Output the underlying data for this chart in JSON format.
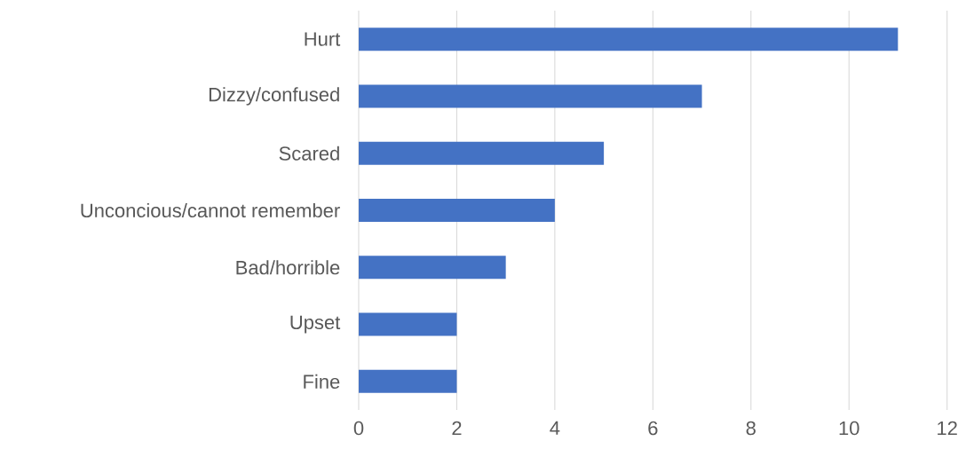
{
  "chart_data": {
    "type": "bar",
    "orientation": "horizontal",
    "categories": [
      "Hurt",
      "Dizzy/confused",
      "Scared",
      "Unconcious/cannot remember",
      "Bad/horrible",
      "Upset",
      "Fine"
    ],
    "values": [
      11,
      7,
      5,
      4,
      3,
      2,
      2
    ],
    "color": "#4472c4",
    "xlim": [
      0,
      12
    ],
    "xticks": [
      0,
      2,
      4,
      6,
      8,
      10,
      12
    ],
    "grid": "x"
  }
}
